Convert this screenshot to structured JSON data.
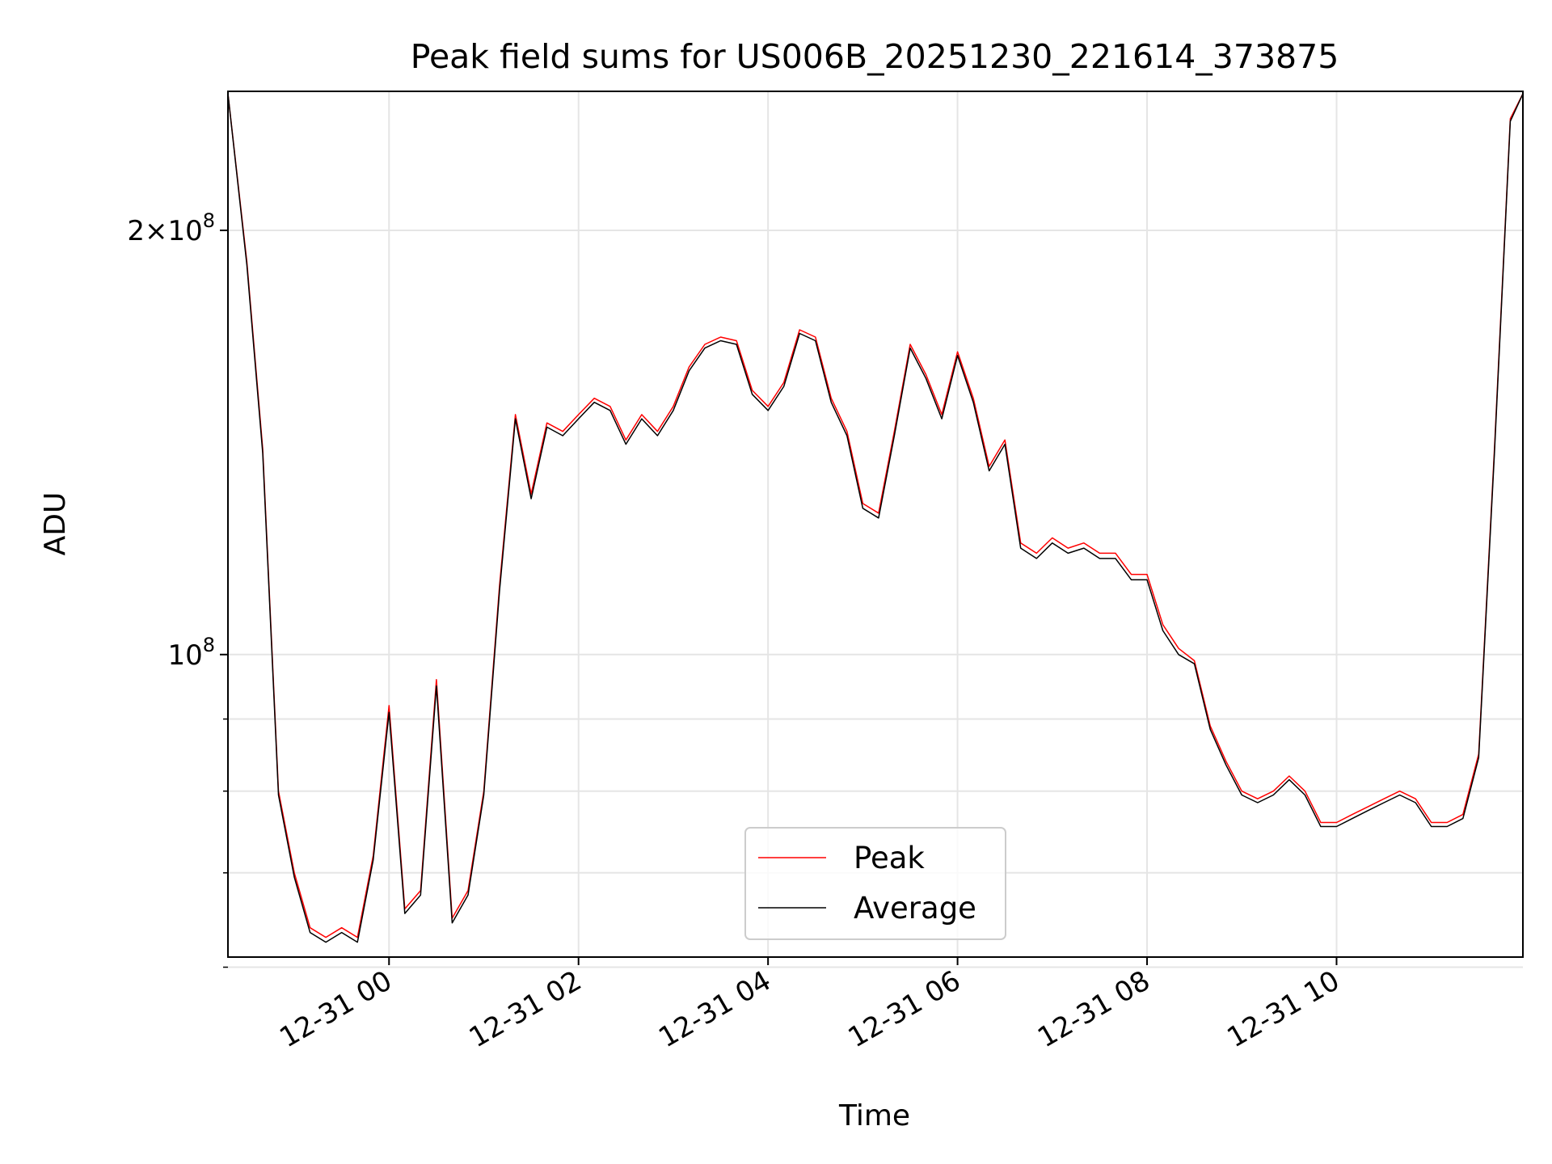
{
  "chart_data": {
    "type": "line",
    "title": "Peak field sums for US006B_20251230_221614_373875",
    "xlabel": "Time",
    "ylabel": "ADU",
    "y_scale": "log",
    "ylim": [
      61000000,
      251000000
    ],
    "xlim": [
      "2025-12-30 22:18",
      "2025-12-31 11:58"
    ],
    "x_tick_labels": [
      "12-31 00",
      "12-31 02",
      "12-31 04",
      "12-31 06",
      "12-31 08",
      "12-31 10"
    ],
    "x_tick_values": [
      "2025-12-31 00:00",
      "2025-12-31 02:00",
      "2025-12-31 04:00",
      "2025-12-31 06:00",
      "2025-12-31 08:00",
      "2025-12-31 10:00"
    ],
    "y_major_ticks": [
      {
        "value": 100000000,
        "mantissa": "",
        "exponent": "8"
      },
      {
        "value": 200000000,
        "mantissa": "2×",
        "exponent": "8"
      }
    ],
    "y_minor_ticks": [
      60000000,
      70000000,
      80000000,
      90000000
    ],
    "grid": true,
    "legend_position": "lower center",
    "x": [
      "2025-12-30 22:18",
      "2025-12-30 22:30",
      "2025-12-30 22:40",
      "2025-12-30 22:50",
      "2025-12-30 23:00",
      "2025-12-30 23:10",
      "2025-12-30 23:20",
      "2025-12-30 23:30",
      "2025-12-30 23:40",
      "2025-12-30 23:50",
      "2025-12-31 00:00",
      "2025-12-31 00:10",
      "2025-12-31 00:20",
      "2025-12-31 00:30",
      "2025-12-31 00:40",
      "2025-12-31 00:50",
      "2025-12-31 01:00",
      "2025-12-31 01:10",
      "2025-12-31 01:20",
      "2025-12-31 01:30",
      "2025-12-31 01:40",
      "2025-12-31 01:50",
      "2025-12-31 02:00",
      "2025-12-31 02:10",
      "2025-12-31 02:20",
      "2025-12-31 02:30",
      "2025-12-31 02:40",
      "2025-12-31 02:50",
      "2025-12-31 03:00",
      "2025-12-31 03:10",
      "2025-12-31 03:20",
      "2025-12-31 03:30",
      "2025-12-31 03:40",
      "2025-12-31 03:50",
      "2025-12-31 04:00",
      "2025-12-31 04:10",
      "2025-12-31 04:20",
      "2025-12-31 04:30",
      "2025-12-31 04:40",
      "2025-12-31 04:50",
      "2025-12-31 05:00",
      "2025-12-31 05:10",
      "2025-12-31 05:20",
      "2025-12-31 05:30",
      "2025-12-31 05:40",
      "2025-12-31 05:50",
      "2025-12-31 06:00",
      "2025-12-31 06:10",
      "2025-12-31 06:20",
      "2025-12-31 06:30",
      "2025-12-31 06:40",
      "2025-12-31 06:50",
      "2025-12-31 07:00",
      "2025-12-31 07:10",
      "2025-12-31 07:20",
      "2025-12-31 07:30",
      "2025-12-31 07:40",
      "2025-12-31 07:50",
      "2025-12-31 08:00",
      "2025-12-31 08:10",
      "2025-12-31 08:20",
      "2025-12-31 08:30",
      "2025-12-31 08:40",
      "2025-12-31 08:50",
      "2025-12-31 09:00",
      "2025-12-31 09:10",
      "2025-12-31 09:20",
      "2025-12-31 09:30",
      "2025-12-31 09:40",
      "2025-12-31 09:50",
      "2025-12-31 10:00",
      "2025-12-31 10:10",
      "2025-12-31 10:20",
      "2025-12-31 10:30",
      "2025-12-31 10:40",
      "2025-12-31 10:50",
      "2025-12-31 11:00",
      "2025-12-31 11:10",
      "2025-12-31 11:20",
      "2025-12-31 11:30",
      "2025-12-31 11:40",
      "2025-12-31 11:50",
      "2025-12-31 11:58"
    ],
    "series": [
      {
        "name": "Peak",
        "color": "#ff0000",
        "values": [
          250000000,
          190000000,
          140000000,
          80000000,
          70000000,
          64000000,
          63000000,
          64000000,
          63000000,
          72000000,
          92000000,
          66000000,
          68000000,
          96000000,
          65000000,
          68000000,
          80000000,
          112000000,
          148000000,
          130000000,
          146000000,
          144000000,
          148000000,
          152000000,
          150000000,
          142000000,
          148000000,
          144000000,
          150000000,
          160000000,
          166000000,
          168000000,
          167000000,
          154000000,
          150000000,
          156000000,
          170000000,
          168000000,
          152000000,
          144000000,
          128000000,
          126000000,
          144000000,
          166000000,
          158000000,
          148000000,
          164000000,
          152000000,
          136000000,
          142000000,
          120000000,
          118000000,
          121000000,
          119000000,
          120000000,
          118000000,
          118000000,
          114000000,
          114000000,
          105000000,
          101000000,
          99000000,
          89000000,
          84000000,
          80000000,
          79000000,
          80000000,
          82000000,
          80000000,
          76000000,
          76000000,
          77000000,
          78000000,
          79000000,
          80000000,
          79000000,
          76000000,
          76000000,
          77000000,
          85000000,
          140000000,
          240000000,
          250000000
        ]
      },
      {
        "name": "Average",
        "color": "#000000",
        "values": [
          250000000,
          189000000,
          139000000,
          79500000,
          69500000,
          63500000,
          62500000,
          63500000,
          62500000,
          71500000,
          91000000,
          65500000,
          67500000,
          95000000,
          64500000,
          67500000,
          79500000,
          111000000,
          147000000,
          129000000,
          145000000,
          143000000,
          147000000,
          151000000,
          149000000,
          141000000,
          147000000,
          143000000,
          149000000,
          159000000,
          165000000,
          167000000,
          166000000,
          153000000,
          149000000,
          155000000,
          169000000,
          167000000,
          151000000,
          143000000,
          127000000,
          125000000,
          143000000,
          165000000,
          157000000,
          147000000,
          163000000,
          151000000,
          135000000,
          141000000,
          119000000,
          117000000,
          120000000,
          118000000,
          119000000,
          117000000,
          117000000,
          113000000,
          113000000,
          104000000,
          100000000,
          98500000,
          88500000,
          83500000,
          79500000,
          78500000,
          79500000,
          81500000,
          79500000,
          75500000,
          75500000,
          76500000,
          77500000,
          78500000,
          79500000,
          78500000,
          75500000,
          75500000,
          76500000,
          84500000,
          139000000,
          239000000,
          250000000
        ]
      }
    ]
  }
}
